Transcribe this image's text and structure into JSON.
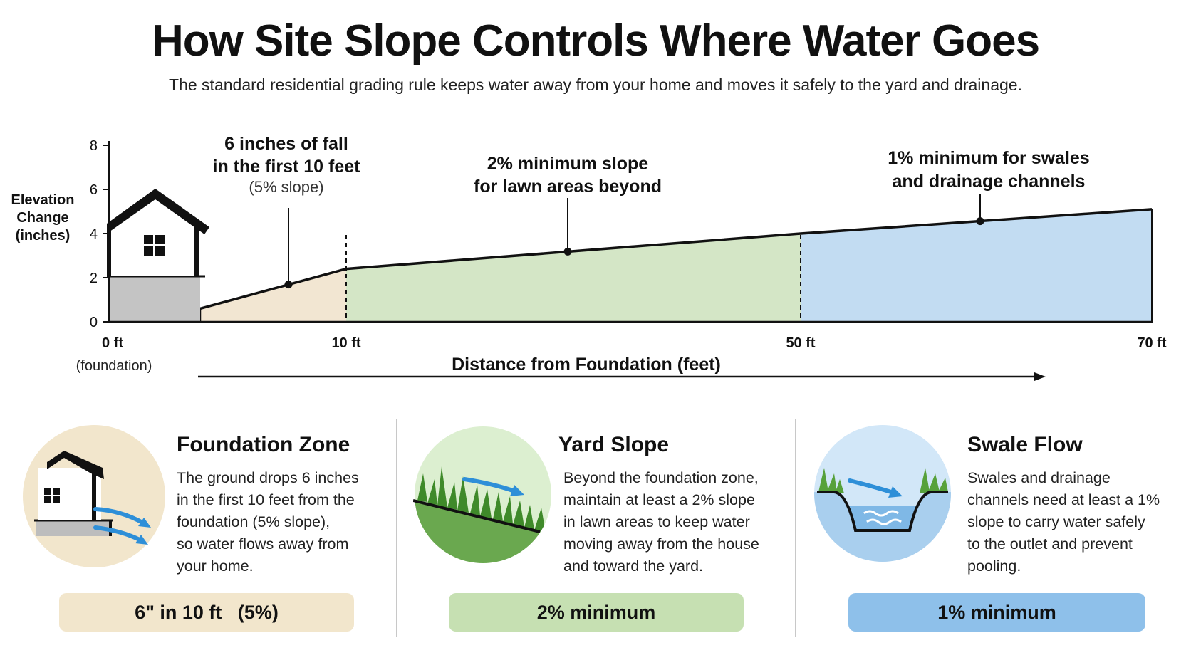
{
  "title": "How Site Slope Controls Where Water Goes",
  "subtitle": "The standard residential grading rule keeps water away from your home and moves it safely to the yard and drainage.",
  "diagram": {
    "y_axis": {
      "label_lines": [
        "Elevation",
        "Change",
        "(inches)"
      ],
      "ticks": [
        "0",
        "2",
        "4",
        "6",
        "8"
      ],
      "range": [
        0,
        8
      ]
    },
    "x_axis": {
      "label": "Distance from Foundation (feet)",
      "ticks": [
        {
          "value": 0,
          "text": "0 ft",
          "sub": "(foundation)"
        },
        {
          "value": 10,
          "text": "10 ft"
        },
        {
          "value": 50,
          "text": "50 ft"
        },
        {
          "value": 70,
          "text": "70 ft"
        }
      ]
    },
    "profile": {
      "points_ft_in": [
        [
          0,
          0.6
        ],
        [
          10,
          2.4
        ],
        [
          50,
          4.0
        ],
        [
          70,
          5.1
        ]
      ],
      "zone_colors": [
        "#f2e6d2",
        "#d4e6c6",
        "#c2dcf2"
      ]
    },
    "callouts": [
      {
        "bold_lines": [
          "6 inches of fall",
          "in the first 10 feet"
        ],
        "light_line": "(5% slope)"
      },
      {
        "bold_lines": [
          "2% minimum slope",
          "for lawn areas beyond"
        ],
        "light_line": ""
      },
      {
        "bold_lines": [
          "1% minimum for swales",
          "and drainage channels"
        ],
        "light_line": ""
      }
    ]
  },
  "cards": [
    {
      "icon": "house-runoff-icon",
      "title": "Foundation Zone",
      "body": "The ground drops 6 inches\nin the first 10 feet from the\nfoundation (5% slope),\nso water flows away from\nyour home.",
      "badge": "6\" in 10 ft   (5%)",
      "badge_color": "#f2e6cc"
    },
    {
      "icon": "lawn-slope-icon",
      "title": "Yard Slope",
      "body": "Beyond the foundation zone,\nmaintain at least a 2% slope\nin lawn areas to keep water\nmoving away from the house\nand toward the yard.",
      "badge": "2% minimum",
      "badge_color": "#c6e0b2"
    },
    {
      "icon": "swale-channel-icon",
      "title": "Swale Flow",
      "body": "Swales and drainage\nchannels need at least a 1%\nslope to carry water safely\nto the outlet and prevent\npooling.",
      "badge": "1% minimum",
      "badge_color": "#8ec0ea"
    }
  ]
}
